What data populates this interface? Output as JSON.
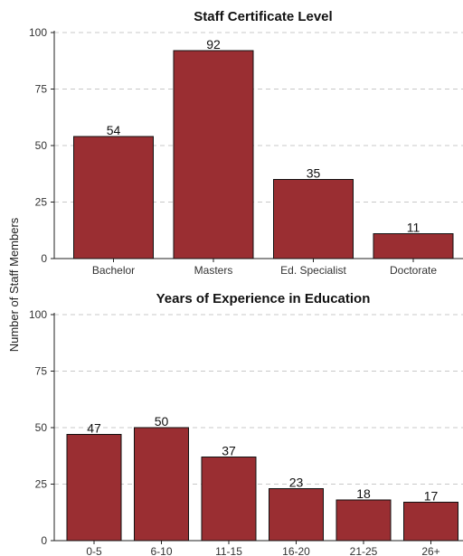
{
  "chart_data": [
    {
      "type": "bar",
      "title": "Staff Certificate Level",
      "categories": [
        "Bachelor",
        "Masters",
        "Ed. Specialist",
        "Doctorate"
      ],
      "values": [
        54,
        92,
        35,
        11
      ],
      "ylim": [
        0,
        100
      ],
      "yticks": [
        0,
        25,
        50,
        75,
        100
      ],
      "grid": true
    },
    {
      "type": "bar",
      "title": "Years of Experience in Education",
      "categories": [
        "0-5",
        "6-10",
        "11-15",
        "16-20",
        "21-25",
        "26+"
      ],
      "values": [
        47,
        50,
        37,
        23,
        18,
        17
      ],
      "ylim": [
        0,
        100
      ],
      "yticks": [
        0,
        25,
        50,
        75,
        100
      ],
      "grid": true
    }
  ],
  "shared_ylabel": "Number of Staff Members",
  "colors": {
    "bar": "#9a2e32",
    "grid": "#c8c8c8"
  }
}
